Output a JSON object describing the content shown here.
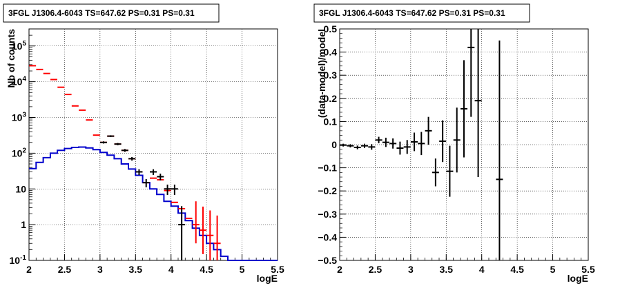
{
  "chart_data": [
    {
      "type": "line",
      "title": "3FGL J1306.4-6043 TS=647.62 PS=0.31 PS=0.31",
      "xlabel": "logE",
      "ylabel": "Nb of counts",
      "xlim": [
        2,
        5.5
      ],
      "ylim": [
        0.1,
        300000
      ],
      "yscale": "log",
      "grid": true,
      "x_ticks": [
        "2",
        "2.5",
        "3",
        "3.5",
        "4",
        "4.5",
        "5",
        "5.5"
      ],
      "y_ticks": [
        {
          "v": 0.1,
          "base": "10",
          "exp": "-1"
        },
        {
          "v": 1,
          "base": "1",
          "exp": ""
        },
        {
          "v": 10,
          "base": "10",
          "exp": ""
        },
        {
          "v": 100,
          "base": "10",
          "exp": "2"
        },
        {
          "v": 1000,
          "base": "10",
          "exp": "3"
        },
        {
          "v": 10000,
          "base": "10",
          "exp": "4"
        },
        {
          "v": 100000,
          "base": "10",
          "exp": "5"
        }
      ],
      "bin_edges": [
        2.0,
        2.1,
        2.2,
        2.3,
        2.4,
        2.5,
        2.6,
        2.7,
        2.8,
        2.9,
        3.0,
        3.1,
        3.2,
        3.3,
        3.4,
        3.5,
        3.6,
        3.7,
        3.8,
        3.9,
        4.0,
        4.1,
        4.2,
        4.3,
        4.4,
        4.5,
        4.6,
        4.7,
        4.8,
        4.9,
        5.0,
        5.1,
        5.2,
        5.3,
        5.4,
        5.5
      ],
      "series": [
        {
          "style": "model-total",
          "color": "#ff0000",
          "x": [
            2.05,
            2.15,
            2.25,
            2.35,
            2.45,
            2.55,
            2.65,
            2.75,
            2.85,
            2.95,
            3.05,
            3.15,
            3.25,
            3.35,
            3.45,
            3.55,
            3.65,
            3.75,
            3.85,
            3.95,
            4.05,
            4.15,
            4.25,
            4.35,
            4.45,
            4.55,
            4.65
          ],
          "y": [
            28000,
            22000,
            17000,
            11500,
            7000,
            4400,
            2100,
            1600,
            850,
            320,
            200,
            300,
            180,
            120,
            70,
            30,
            15,
            20,
            18,
            9,
            4.2,
            2.8,
            1.5,
            1.0,
            0.7,
            0.5,
            0.3
          ],
          "err_lo": [
            0,
            0,
            0,
            0,
            0,
            0,
            0,
            0,
            0,
            0,
            0,
            0,
            0,
            0,
            0,
            0,
            0,
            0,
            0,
            0,
            0,
            0,
            0,
            0.7,
            0.55,
            0.42,
            0.25
          ],
          "err_hi": [
            0,
            0,
            0,
            0,
            0,
            0,
            0,
            0,
            0,
            0,
            0,
            0,
            0,
            0,
            0,
            0,
            0,
            0,
            0,
            0,
            0,
            0,
            0,
            3.5,
            2.5,
            2.0,
            1.5
          ]
        },
        {
          "style": "source-model",
          "color": "#0000cc",
          "edges": [
            2.0,
            2.1,
            2.2,
            2.3,
            2.4,
            2.5,
            2.6,
            2.7,
            2.8,
            2.9,
            3.0,
            3.1,
            3.2,
            3.3,
            3.4,
            3.5,
            3.6,
            3.7,
            3.8,
            3.9,
            4.0,
            4.1,
            4.2,
            4.3,
            4.4,
            4.5,
            4.6,
            4.7,
            4.8,
            4.9,
            5.0,
            5.1,
            5.2,
            5.3,
            5.4,
            5.5
          ],
          "y": [
            37,
            55,
            75,
            100,
            120,
            135,
            145,
            148,
            140,
            125,
            105,
            88,
            70,
            50,
            36,
            24,
            15,
            10,
            7,
            4.5,
            3.3,
            2.1,
            1.3,
            0.8,
            0.5,
            0.3,
            0.2,
            0.13,
            0.1,
            0.1,
            0.1,
            0.1,
            0.1,
            0.1,
            0.1
          ]
        },
        {
          "style": "data",
          "color": "#000000",
          "x": [
            3.05,
            3.15,
            3.25,
            3.35,
            3.45,
            3.55,
            3.65,
            3.75,
            3.85,
            3.95,
            4.05,
            4.15
          ],
          "y": [
            200,
            300,
            180,
            120,
            70,
            30,
            15,
            30,
            22,
            10,
            10,
            1
          ],
          "err_lo": [
            14,
            17,
            13,
            11,
            8,
            5.5,
            3.9,
            5.5,
            4.7,
            3.2,
            3.2,
            0.95
          ],
          "err_hi": [
            14,
            17,
            13,
            11,
            8,
            5.5,
            3.9,
            5.5,
            4.7,
            3.2,
            3.2,
            2.3
          ]
        }
      ]
    },
    {
      "type": "scatter",
      "title": "3FGL J1306.4-6043 TS=647.62 PS=0.31 PS=0.31",
      "xlabel": "logE",
      "ylabel": "(data-model)/model",
      "xlim": [
        2,
        5.5
      ],
      "ylim": [
        -0.5,
        0.5
      ],
      "grid": true,
      "x_ticks": [
        "2",
        "2.5",
        "3",
        "3.5",
        "4",
        "4.5",
        "5",
        "5.5"
      ],
      "y_ticks": [
        {
          "v": -0.5,
          "label": "−0.5"
        },
        {
          "v": -0.4,
          "label": "−0.4"
        },
        {
          "v": -0.3,
          "label": "−0.3"
        },
        {
          "v": -0.2,
          "label": "−0.2"
        },
        {
          "v": -0.1,
          "label": "−0.1"
        },
        {
          "v": 0,
          "label": "0"
        },
        {
          "v": 0.1,
          "label": "0.1"
        },
        {
          "v": 0.2,
          "label": "0.2"
        },
        {
          "v": 0.3,
          "label": "0.3"
        },
        {
          "v": 0.4,
          "label": "0.4"
        },
        {
          "v": 0.5,
          "label": "0.5"
        }
      ],
      "series": [
        {
          "style": "residuals",
          "color": "#000000",
          "x": [
            2.05,
            2.15,
            2.25,
            2.35,
            2.45,
            2.55,
            2.65,
            2.75,
            2.85,
            2.95,
            3.05,
            3.15,
            3.25,
            3.35,
            3.45,
            3.55,
            3.65,
            3.75,
            3.85,
            3.95,
            4.25
          ],
          "y": [
            -0.002,
            -0.005,
            -0.012,
            -0.005,
            -0.01,
            0.02,
            0.01,
            0.005,
            -0.015,
            -0.01,
            0.012,
            0.005,
            0.06,
            -0.12,
            0.015,
            -0.115,
            0.02,
            0.155,
            0.42,
            0.19,
            -0.15
          ],
          "err": [
            0.006,
            0.007,
            0.008,
            0.009,
            0.012,
            0.014,
            0.02,
            0.022,
            0.028,
            0.03,
            0.04,
            0.05,
            0.06,
            0.06,
            0.09,
            0.11,
            0.14,
            0.21,
            0.3,
            0.33,
            0.6
          ]
        }
      ]
    }
  ]
}
